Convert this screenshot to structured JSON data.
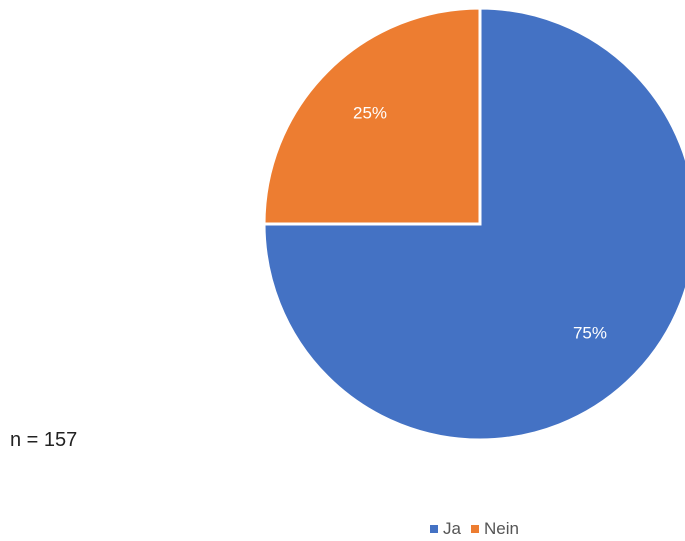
{
  "chart_data": {
    "type": "pie",
    "categories": [
      "Ja",
      "Nein"
    ],
    "values": [
      75,
      25
    ],
    "labels": [
      "75%",
      "25%"
    ],
    "colors": [
      "#4472C4",
      "#ED7D31"
    ],
    "start": "12 o'clock",
    "direction": "clockwise",
    "legend": "bottom"
  },
  "note": "n = 157"
}
